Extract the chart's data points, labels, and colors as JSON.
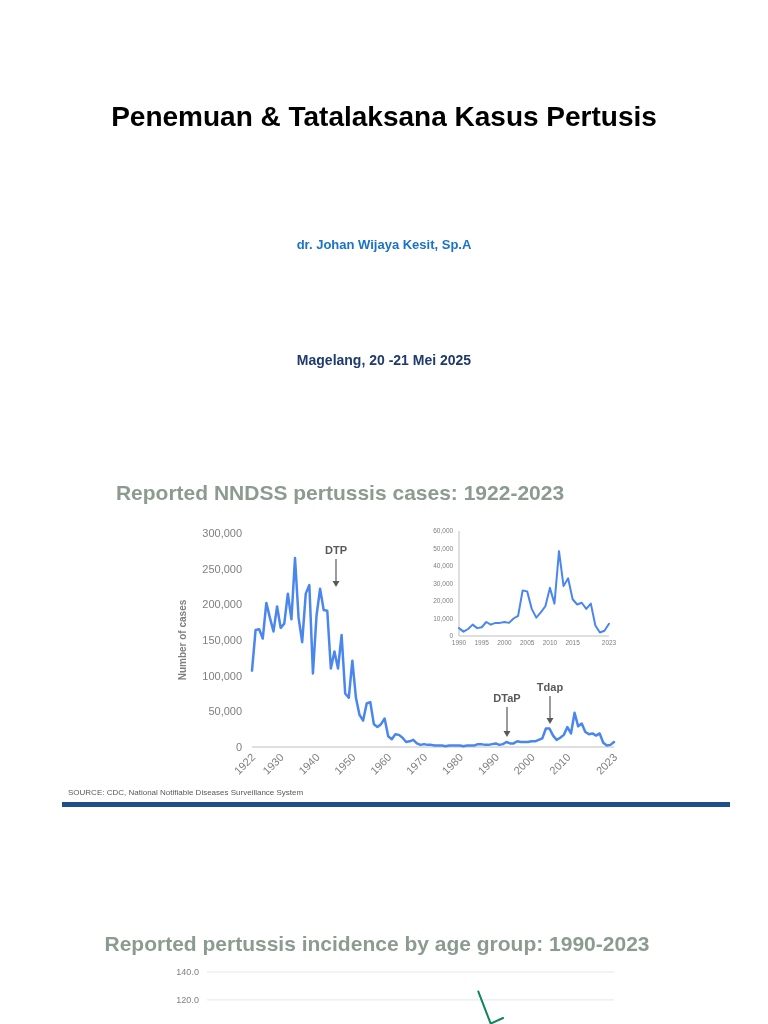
{
  "chart_data": [
    {
      "type": "other",
      "title": "Penemuan & Tatalaksana Kasus Pertusis",
      "subtitle": "dr. Johan Wijaya Kesit, Sp.A",
      "annotations": [
        "Magelang, 20 -21 Mei 2025"
      ]
    },
    {
      "type": "line",
      "title": "Reported NNDSS pertussis cases: 1922-2023",
      "ylabel": "Number of cases",
      "x": [
        1922,
        1923,
        1924,
        1925,
        1926,
        1927,
        1928,
        1929,
        1930,
        1931,
        1932,
        1933,
        1934,
        1935,
        1936,
        1937,
        1938,
        1939,
        1940,
        1941,
        1942,
        1943,
        1944,
        1945,
        1946,
        1947,
        1948,
        1949,
        1950,
        1951,
        1952,
        1953,
        1954,
        1955,
        1956,
        1957,
        1958,
        1959,
        1960,
        1961,
        1962,
        1963,
        1964,
        1965,
        1966,
        1967,
        1968,
        1969,
        1970,
        1971,
        1972,
        1973,
        1974,
        1975,
        1976,
        1977,
        1978,
        1979,
        1980,
        1981,
        1982,
        1983,
        1984,
        1985,
        1986,
        1987,
        1988,
        1989,
        1990,
        1991,
        1992,
        1993,
        1994,
        1995,
        1996,
        1997,
        1998,
        1999,
        2000,
        2001,
        2002,
        2003,
        2004,
        2005,
        2006,
        2007,
        2008,
        2009,
        2010,
        2011,
        2012,
        2013,
        2014,
        2015,
        2016,
        2017,
        2018,
        2019,
        2020,
        2021,
        2022,
        2023
      ],
      "series": [
        {
          "color": "#4a86f0",
          "values": [
            107000,
            164000,
            165000,
            152000,
            202000,
            181000,
            162000,
            197000,
            167000,
            173000,
            215000,
            179000,
            265000,
            181000,
            147000,
            215000,
            227000,
            103000,
            184000,
            222000,
            192000,
            191000,
            110000,
            134000,
            110000,
            157000,
            75000,
            69000,
            121000,
            69000,
            45000,
            37000,
            61000,
            63000,
            32000,
            28000,
            32000,
            40000,
            15000,
            11000,
            18000,
            17000,
            13000,
            7000,
            8000,
            10000,
            5000,
            3000,
            4000,
            3000,
            3000,
            2000,
            2000,
            2000,
            1000,
            2000,
            2000,
            2000,
            2000,
            1000,
            2000,
            2000,
            2000,
            4000,
            4000,
            3000,
            3000,
            4000,
            5000,
            3000,
            4000,
            7000,
            5000,
            5000,
            8000,
            7000,
            7000,
            7000,
            8000,
            8000,
            10000,
            12000,
            26000,
            26000,
            16000,
            10000,
            13000,
            17000,
            28000,
            19000,
            48000,
            29000,
            33000,
            21000,
            18000,
            19000,
            16000,
            19000,
            6000,
            2000,
            3000,
            7000
          ]
        }
      ],
      "xlim": [
        1922,
        2023
      ],
      "xticks": [
        1922,
        1930,
        1940,
        1950,
        1960,
        1970,
        1980,
        1990,
        2000,
        2010,
        2023
      ],
      "ylim": [
        0,
        300000
      ],
      "yticks": [
        0,
        {
          "value": 50000,
          "label": "50,000"
        },
        {
          "value": 100000,
          "label": "100,000"
        },
        {
          "value": 150000,
          "label": "150,000"
        },
        {
          "value": 200000,
          "label": "200,000"
        },
        {
          "value": 250000,
          "label": "250,000"
        },
        {
          "value": 300000,
          "label": "300,000"
        }
      ],
      "grid": false,
      "marker": "none",
      "line_style": "solid",
      "annotations": [
        "DTP",
        "DTaP",
        "Tdap",
        "SOURCE: CDC, National Notifiable Diseases Surveillance System"
      ]
    },
    {
      "type": "line",
      "x": [
        1990,
        1991,
        1992,
        1993,
        1994,
        1995,
        1996,
        1997,
        1998,
        1999,
        2000,
        2001,
        2002,
        2003,
        2004,
        2005,
        2006,
        2007,
        2008,
        2009,
        2010,
        2011,
        2012,
        2013,
        2014,
        2015,
        2016,
        2017,
        2018,
        2019,
        2020,
        2021,
        2022,
        2023
      ],
      "series": [
        {
          "color": "#4a86f0",
          "values": [
            4500,
            2500,
            4000,
            6500,
            4500,
            5000,
            8000,
            6500,
            7500,
            7500,
            8000,
            7500,
            10000,
            11500,
            26000,
            25500,
            15500,
            10500,
            13500,
            17000,
            27500,
            18500,
            48500,
            28500,
            33000,
            21000,
            18000,
            19000,
            15500,
            18500,
            6000,
            2000,
            3000,
            7000
          ]
        }
      ],
      "xlim": [
        1990,
        2023
      ],
      "xticks": [
        1990,
        1995,
        2000,
        2005,
        2010,
        2015,
        2023
      ],
      "ylim": [
        0,
        60000
      ],
      "yticks": [
        0,
        {
          "value": 10000,
          "label": "10,000"
        },
        {
          "value": 20000,
          "label": "20,000"
        },
        {
          "value": 30000,
          "label": "30,000"
        },
        {
          "value": 40000,
          "label": "40,000"
        },
        {
          "value": 50000,
          "label": "50,000"
        },
        {
          "value": 60000,
          "label": "60,000"
        }
      ],
      "grid": false,
      "marker": "none",
      "line_style": "solid"
    },
    {
      "type": "line",
      "title": "Reported pertussis incidence by age group: 1990-2023",
      "categories": [
        null,
        null,
        null,
        null,
        null,
        null,
        null,
        null,
        null,
        null,
        null,
        null,
        null,
        null,
        null,
        null,
        null,
        null,
        null,
        null,
        null,
        null,
        null,
        null,
        null,
        null,
        null,
        null,
        null,
        null,
        null,
        null,
        null,
        null
      ],
      "series": [
        {
          "color": "#11845b",
          "values": [
            null,
            null,
            null,
            null,
            null,
            null,
            null,
            null,
            null,
            null,
            null,
            null,
            null,
            null,
            null,
            null,
            null,
            null,
            null,
            null,
            null,
            null,
            126,
            103,
            107,
            null,
            null,
            null,
            null,
            null,
            null,
            null,
            null,
            null
          ]
        }
      ],
      "ylim": [
        102,
        140
      ],
      "yticks": [
        {
          "value": 120,
          "label": "120.0"
        },
        {
          "value": 140,
          "label": "140.0"
        }
      ],
      "grid": "y",
      "marker": "none",
      "line_style": "solid",
      "tick_labels": "y"
    }
  ]
}
